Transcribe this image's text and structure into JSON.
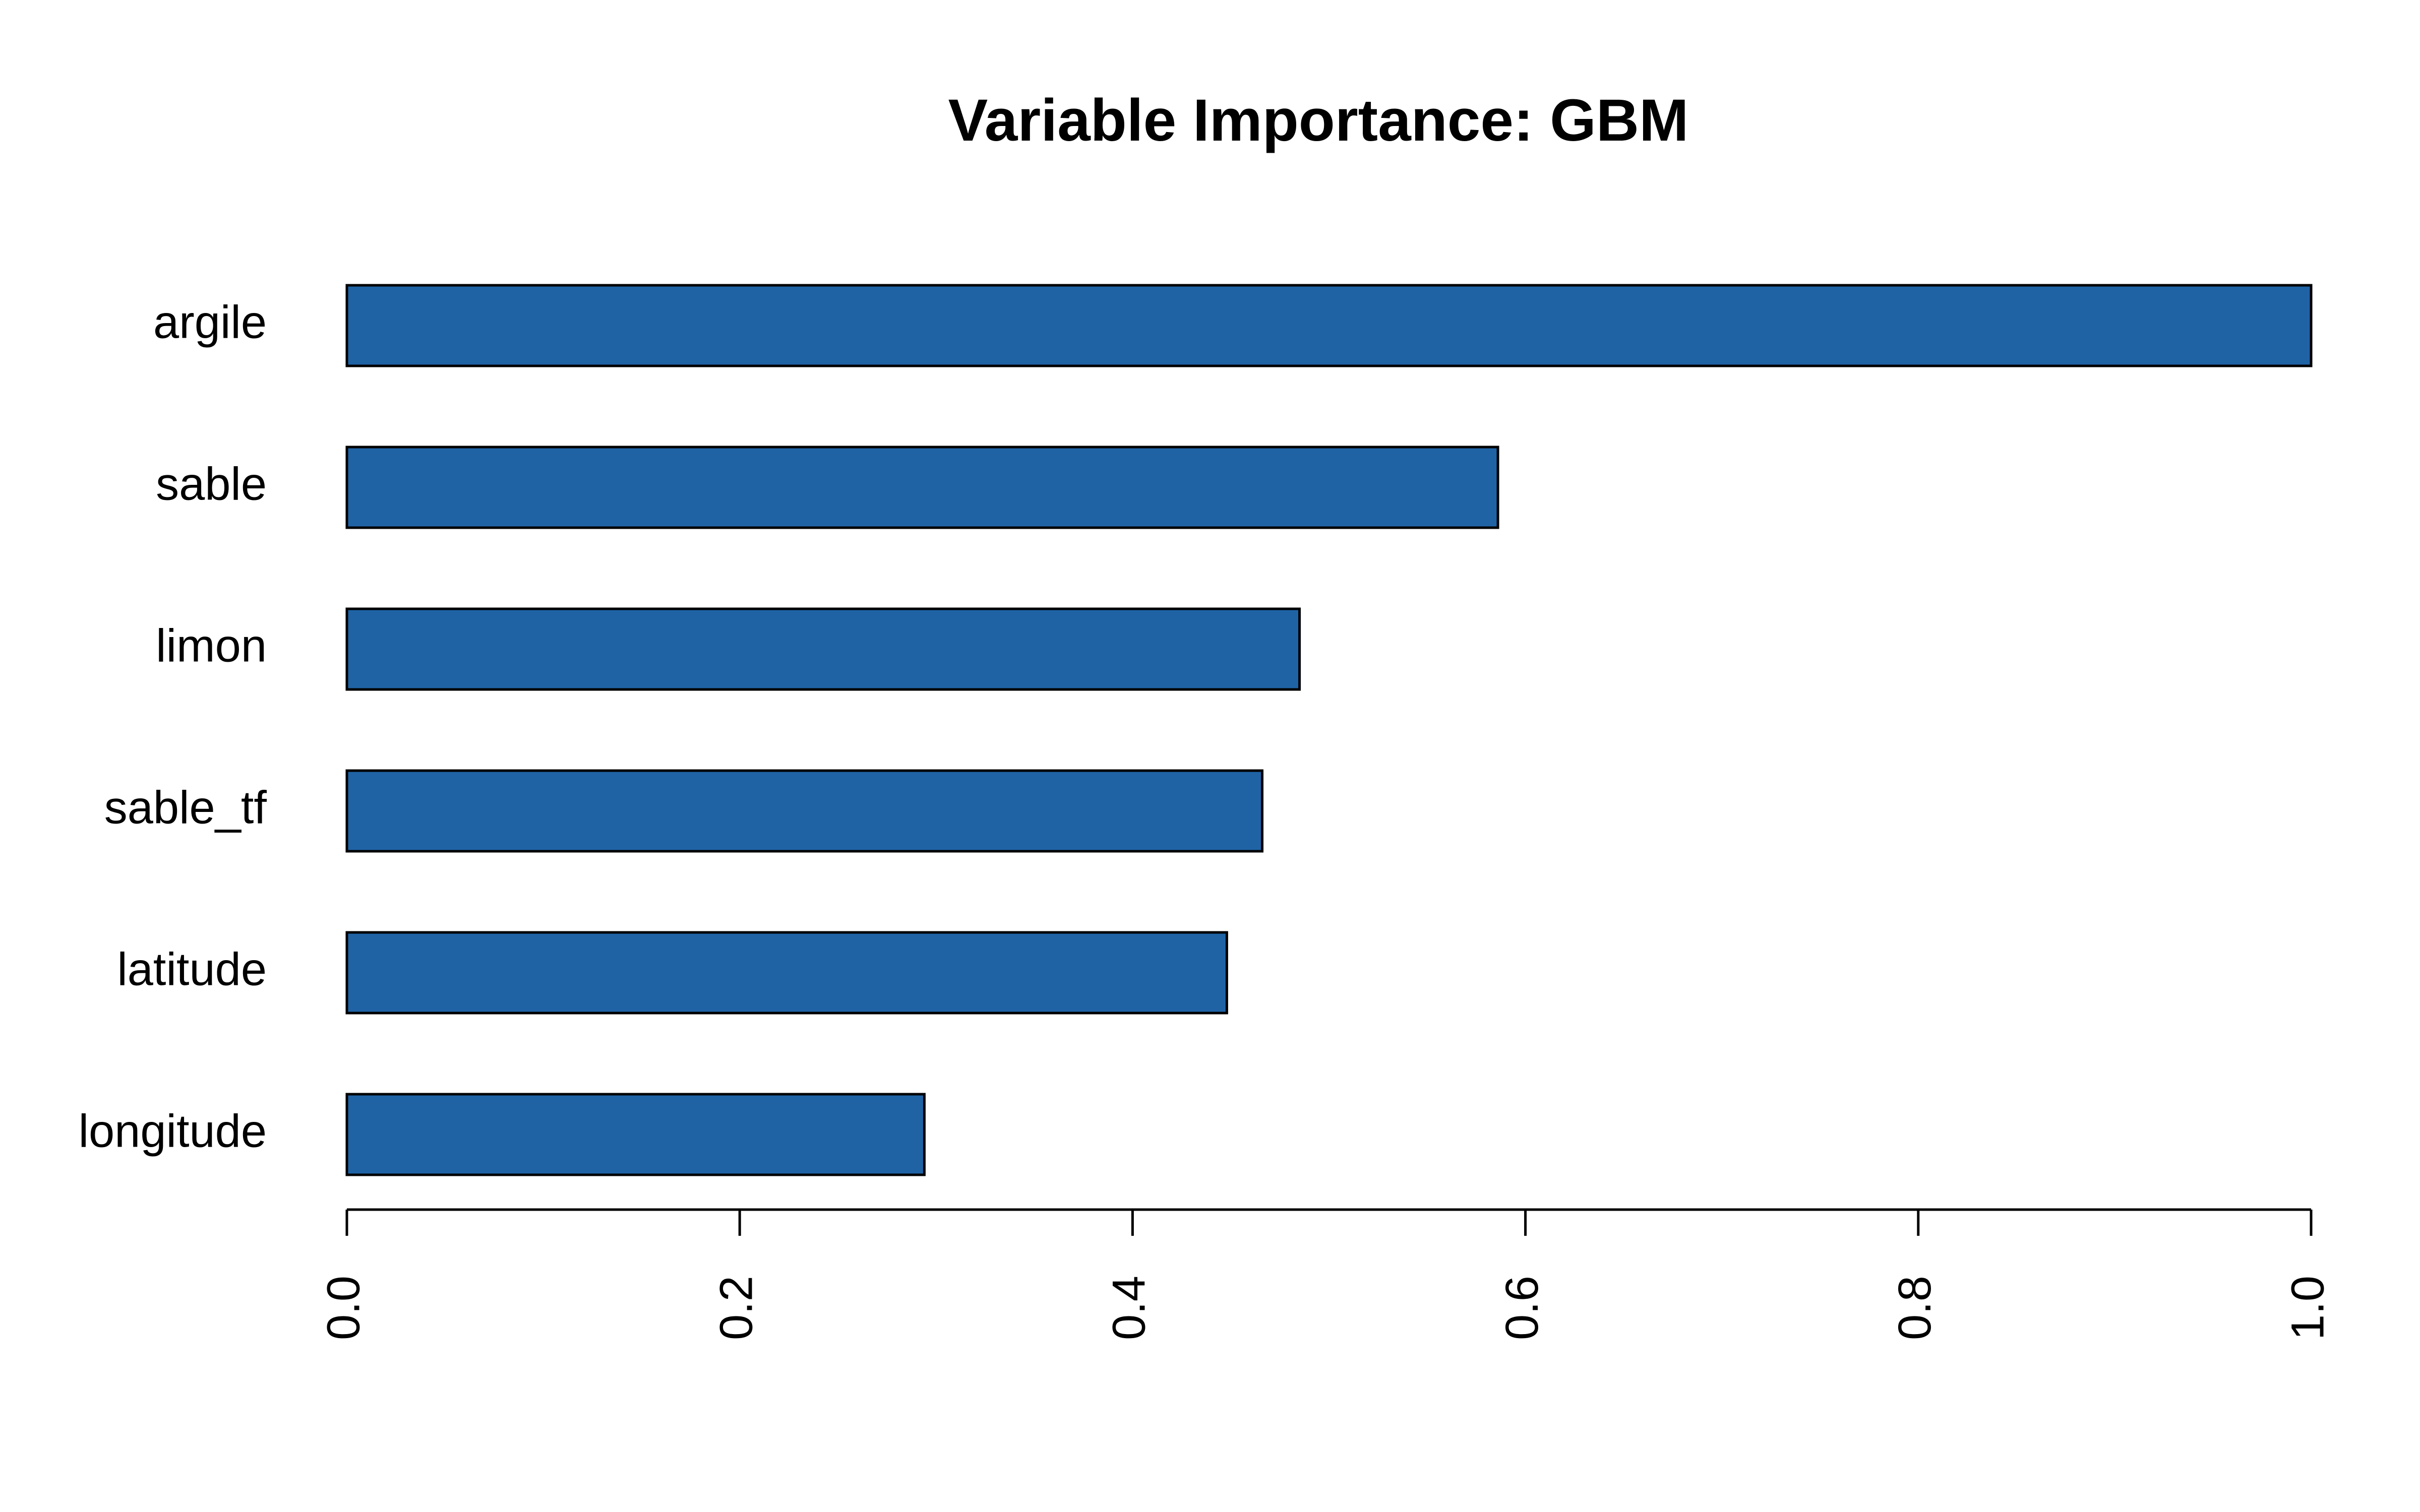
{
  "chart_data": {
    "type": "bar",
    "orientation": "horizontal",
    "title": "Variable Importance: GBM",
    "categories": [
      "argile",
      "sable",
      "limon",
      "sable_tf",
      "latitude",
      "longitude"
    ],
    "values": [
      1.0,
      0.586,
      0.485,
      0.466,
      0.448,
      0.294
    ],
    "color": "#1f63a5",
    "xlim": [
      0,
      1
    ],
    "xticks": [
      {
        "value": 0,
        "label": "0.0"
      },
      {
        "value": 0.2,
        "label": "0.2"
      },
      {
        "value": 0.4,
        "label": "0.4"
      },
      {
        "value": 0.6,
        "label": "0.6"
      },
      {
        "value": 0.8,
        "label": "0.8"
      },
      {
        "value": 1,
        "label": "1.0"
      }
    ],
    "grid": false
  }
}
